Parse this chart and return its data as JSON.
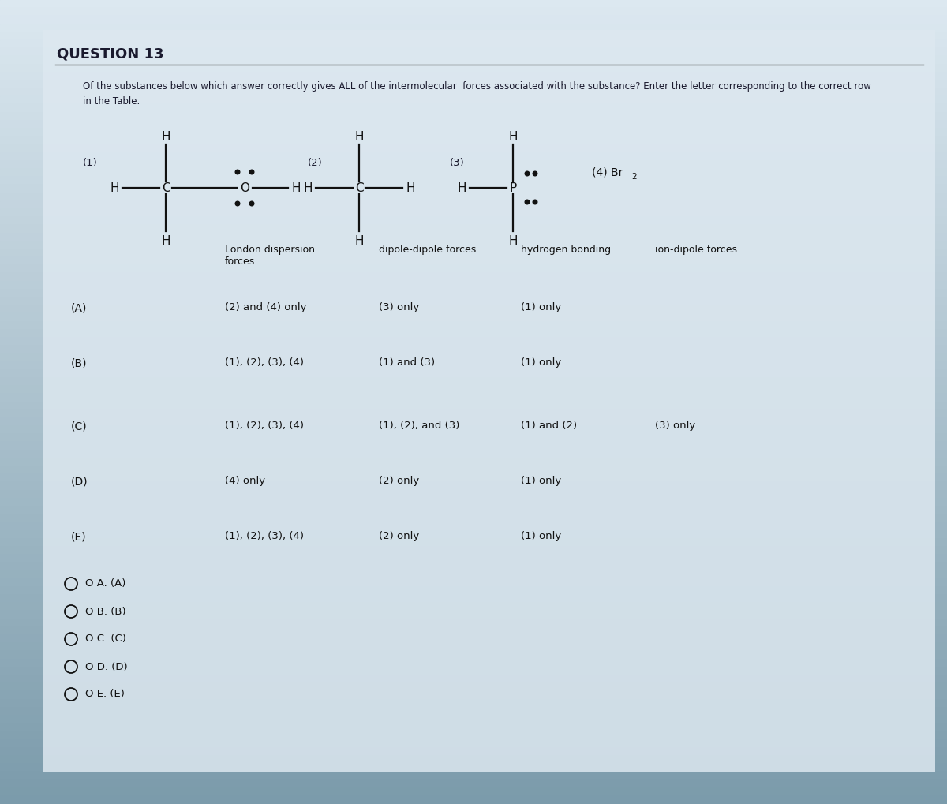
{
  "title": "QUESTION 13",
  "subtitle_line1": "Of the substances below which answer correctly gives ALL of the intermolecular  forces associated with the substance? Enter the letter corresponding to the correct row",
  "subtitle_line2": "in the Table.",
  "bg_color_top": "#dce8f0",
  "bg_color_mid": "#b8cdd8",
  "bg_color_bottom": "#8aaabb",
  "panel_color": "#d8e8f0",
  "text_color": "#1a1a2e",
  "col_headers": [
    "London dispersion\nforces",
    "dipole-dipole forces",
    "hydrogen bonding",
    "ion-dipole forces"
  ],
  "row_labels": [
    "(A)",
    "(B)",
    "(C)",
    "(D)",
    "(E)"
  ],
  "table_data": [
    [
      "(2) and (4) only",
      "(3) only",
      "(1) only",
      ""
    ],
    [
      "(1), (2), (3), (4)",
      "(1) and (3)",
      "(1) only",
      ""
    ],
    [
      "(1), (2), (3), (4)",
      "(1), (2), and (3)",
      "(1) and (2)",
      "(3) only"
    ],
    [
      "(4) only",
      "(2) only",
      "(1) only",
      ""
    ],
    [
      "(1), (2), (3), (4)",
      "(2) only",
      "(1) only",
      ""
    ]
  ],
  "answer_choices": [
    "A. (A)",
    "B. (B)",
    "C. (C)",
    "D. (D)",
    "E. (E)"
  ]
}
